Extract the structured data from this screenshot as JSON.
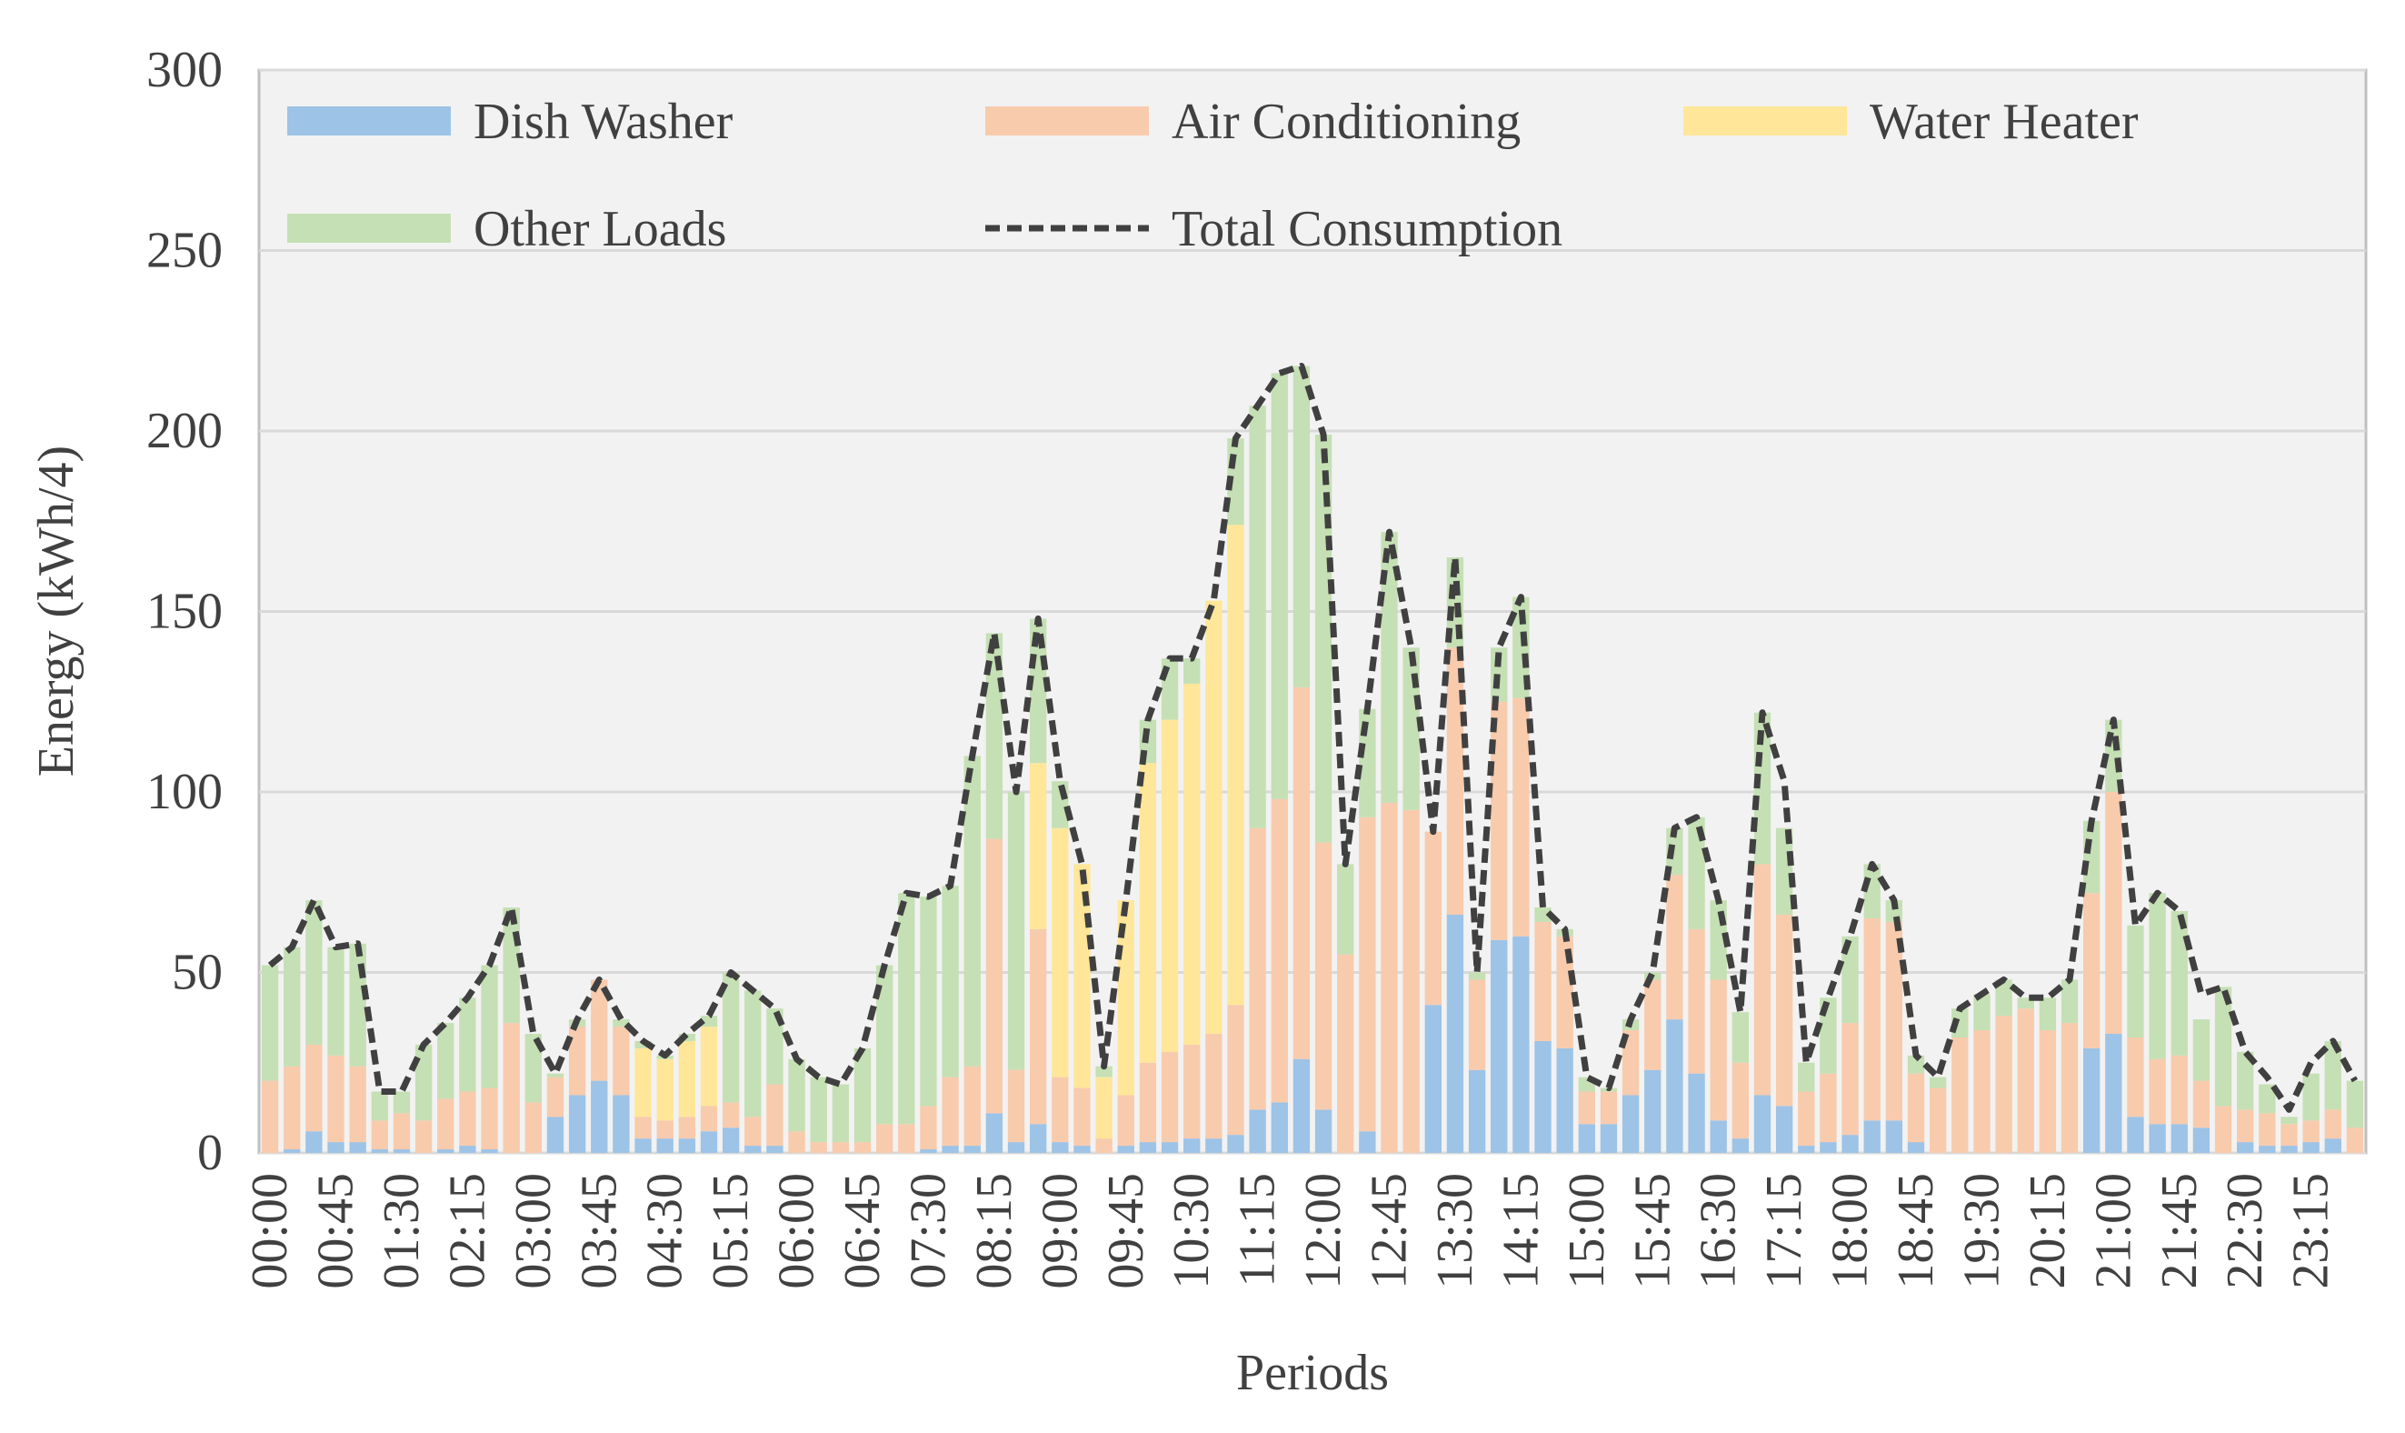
{
  "chart_data": {
    "type": "bar",
    "stacked": true,
    "y_label": "Energy (kWh/4)",
    "x_label": "Periods",
    "categories": [
      "00:00",
      null,
      null,
      "00:45",
      null,
      null,
      "01:30",
      null,
      null,
      "02:15",
      null,
      null,
      "03:00",
      null,
      null,
      "03:45",
      null,
      null,
      "04:30",
      null,
      null,
      "05:15",
      null,
      null,
      "06:00",
      null,
      null,
      "06:45",
      null,
      null,
      "07:30",
      null,
      null,
      "08:15",
      null,
      null,
      "09:00",
      null,
      null,
      "09:45",
      null,
      null,
      "10:30",
      null,
      null,
      "11:15",
      null,
      null,
      "12:00",
      null,
      null,
      "12:45",
      null,
      null,
      "13:30",
      null,
      null,
      "14:15",
      null,
      null,
      "15:00",
      null,
      null,
      "15:45",
      null,
      null,
      "16:30",
      null,
      null,
      "17:15",
      null,
      null,
      "18:00",
      null,
      null,
      "18:45",
      null,
      null,
      "19:30",
      null,
      null,
      "20:15",
      null,
      null,
      "21:00",
      null,
      null,
      "21:45",
      null,
      null,
      "22:30",
      null,
      null,
      "23:15",
      null,
      null
    ],
    "series": [
      {
        "name": "Dish Washer",
        "color": "#9dc3e6",
        "values": [
          0,
          1,
          6,
          3,
          3,
          1,
          1,
          0,
          1,
          2,
          1,
          0,
          0,
          10,
          16,
          20,
          16,
          4,
          4,
          4,
          6,
          7,
          2,
          2,
          0,
          0,
          0,
          0,
          0,
          0,
          1,
          2,
          2,
          11,
          3,
          8,
          3,
          2,
          0,
          2,
          3,
          3,
          4,
          4,
          5,
          12,
          14,
          26,
          12,
          0,
          6,
          0,
          0,
          41,
          66,
          23,
          59,
          60,
          31,
          29,
          8,
          8,
          16,
          23,
          37,
          22,
          9,
          4,
          16,
          13,
          2,
          3,
          5,
          9,
          9,
          3,
          0,
          0,
          0,
          0,
          0,
          0,
          0,
          29,
          33,
          10,
          8,
          8,
          7,
          0,
          3,
          2,
          2,
          3,
          4,
          0
        ]
      },
      {
        "name": "Air Conditioning",
        "color": "#f8cbad",
        "values": [
          20,
          23,
          24,
          24,
          21,
          8,
          10,
          9,
          14,
          15,
          17,
          36,
          14,
          11,
          19,
          28,
          19,
          6,
          5,
          6,
          7,
          7,
          8,
          17,
          6,
          3,
          3,
          3,
          8,
          8,
          12,
          19,
          22,
          76,
          20,
          54,
          18,
          16,
          4,
          14,
          22,
          25,
          26,
          29,
          36,
          78,
          84,
          103,
          74,
          55,
          87,
          97,
          95,
          48,
          74,
          25,
          66,
          66,
          33,
          31,
          9,
          9,
          18,
          25,
          40,
          40,
          39,
          21,
          64,
          53,
          15,
          19,
          31,
          56,
          55,
          19,
          18,
          32,
          34,
          38,
          40,
          34,
          36,
          43,
          67,
          22,
          18,
          19,
          13,
          13,
          9,
          9,
          6,
          6,
          8,
          7
        ]
      },
      {
        "name": "Water Heater",
        "color": "#ffe699",
        "values": [
          0,
          0,
          0,
          0,
          0,
          0,
          0,
          0,
          0,
          0,
          0,
          0,
          0,
          0,
          0,
          0,
          0,
          19,
          17,
          21,
          22,
          0,
          0,
          0,
          0,
          0,
          0,
          0,
          0,
          0,
          0,
          0,
          0,
          0,
          0,
          46,
          69,
          62,
          17,
          54,
          83,
          92,
          100,
          120,
          133,
          0,
          0,
          0,
          0,
          0,
          0,
          0,
          0,
          0,
          0,
          0,
          0,
          0,
          0,
          0,
          0,
          0,
          0,
          0,
          0,
          0,
          0,
          0,
          0,
          0,
          0,
          0,
          0,
          0,
          0,
          0,
          0,
          0,
          0,
          0,
          0,
          0,
          0,
          0,
          0,
          0,
          0,
          0,
          0,
          0,
          0,
          0,
          0,
          0,
          0,
          0
        ]
      },
      {
        "name": "Other Loads",
        "color": "#c5e0b4",
        "values": [
          32,
          33,
          40,
          30,
          34,
          8,
          6,
          21,
          21,
          26,
          34,
          32,
          19,
          1,
          2,
          0,
          2,
          2,
          1,
          2,
          3,
          36,
          35,
          21,
          20,
          18,
          16,
          26,
          44,
          64,
          58,
          53,
          86,
          57,
          77,
          40,
          13,
          0,
          3,
          0,
          12,
          17,
          7,
          0,
          24,
          117,
          118,
          89,
          113,
          25,
          30,
          75,
          45,
          0,
          25,
          2,
          15,
          28,
          4,
          2,
          4,
          1,
          3,
          2,
          13,
          31,
          22,
          14,
          42,
          24,
          8,
          21,
          24,
          15,
          6,
          5,
          3,
          8,
          10,
          10,
          3,
          9,
          12,
          20,
          20,
          31,
          46,
          40,
          17,
          33,
          16,
          8,
          2,
          13,
          19,
          13
        ]
      },
      {
        "name": "Total Consumption",
        "type": "line",
        "dashed": true,
        "color": "#404040",
        "values": [
          52,
          57,
          70,
          57,
          58,
          17,
          17,
          30,
          36,
          43,
          52,
          68,
          33,
          22,
          37,
          48,
          37,
          31,
          27,
          33,
          38,
          50,
          45,
          40,
          26,
          21,
          19,
          29,
          52,
          72,
          71,
          74,
          110,
          144,
          100,
          148,
          103,
          80,
          24,
          70,
          120,
          137,
          137,
          153,
          198,
          207,
          216,
          218,
          199,
          80,
          123,
          172,
          140,
          89,
          165,
          50,
          140,
          154,
          68,
          62,
          21,
          18,
          37,
          50,
          90,
          93,
          70,
          39,
          122,
          103,
          25,
          43,
          60,
          80,
          70,
          27,
          21,
          40,
          44,
          48,
          43,
          43,
          48,
          92,
          120,
          63,
          72,
          67,
          44,
          46,
          28,
          21,
          12,
          25,
          31,
          20
        ]
      }
    ],
    "ylim": [
      0,
      300
    ],
    "yticks": [
      0,
      50,
      100,
      150,
      200,
      250,
      300
    ],
    "grid": true,
    "legend": "top"
  }
}
